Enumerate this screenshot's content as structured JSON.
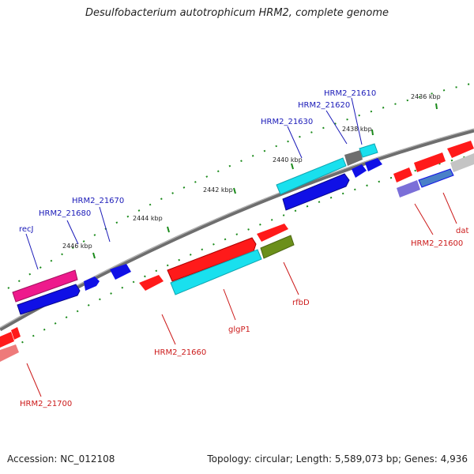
{
  "title": "Desulfobacterium autotrophicum HRM2, complete genome",
  "footer": {
    "accession": "Accession: NC_012108",
    "summary": "Topology: circular; Length: 5,589,073 bp; Genes: 4,936"
  },
  "tick_labels": [
    "2436 kbp",
    "2438 kbp",
    "2440 kbp",
    "2442 kbp",
    "2444 kbp",
    "2446 kbp"
  ],
  "gene_labels_top": [
    "HRM2_21610",
    "HRM2_21620",
    "HRM2_21630",
    "HRM2_21670",
    "HRM2_21680",
    "recJ"
  ],
  "gene_labels_bottom": [
    "dat",
    "HRM2_21600",
    "rfbD",
    "glgP1",
    "HRM2_21660",
    "HRM2_21700"
  ],
  "colors": {
    "backbone": "#7a7a7a",
    "tick": "#1a8a1a",
    "top_label": "#1a1ab8",
    "bottom_label": "#cc1a1a",
    "forward_cds": "#ff1a1a",
    "reverse_cds": "#1010e6",
    "cyan": "#19e0ee",
    "magenta": "#ee1a8c",
    "olive": "#6b8f1a",
    "gray": "#6e6e6e",
    "lavender": "#7b6fd8",
    "steel": "#4a80c8",
    "light_gray": "#c4c4c4",
    "pink": "#ee7a7a"
  }
}
